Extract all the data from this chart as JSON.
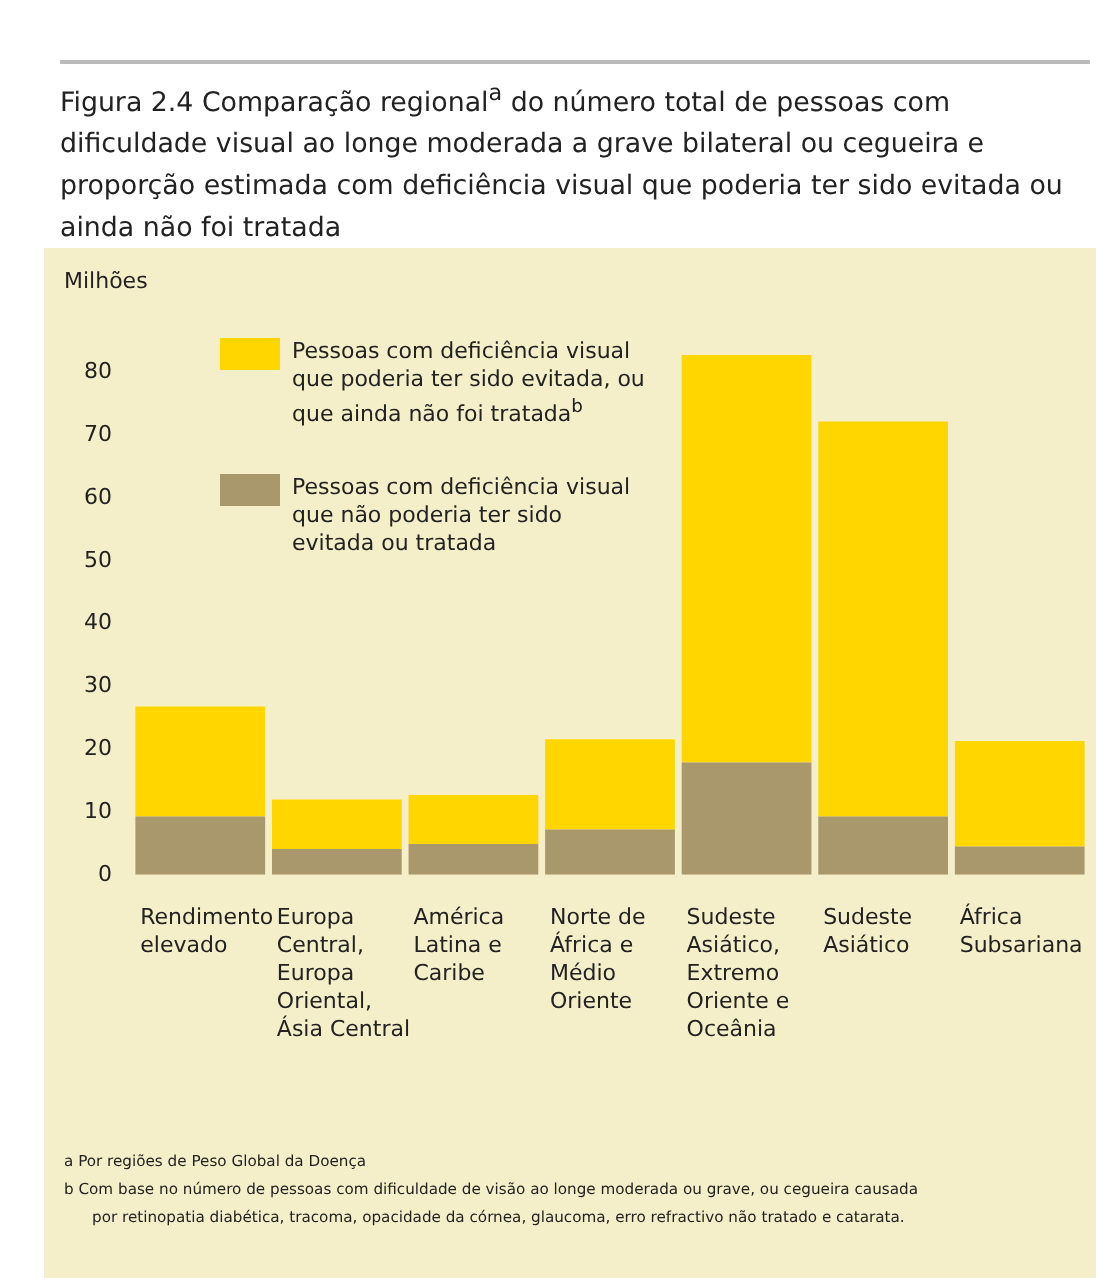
{
  "chart_data": {
    "type": "bar",
    "title": "Figura 2.4 Comparação regional$^{a}$ do número total de pessoas com dificuldade visual ao longe moderada a grave bilateral ou cegueira e proporção estimada com deficiência visual que poderia ter sido evitada ou ainda não foi tratada",
    "ylabel": "Milhões",
    "categories": [
      "Rendimento elevado",
      "Europa Central, Europa Oriental, Ásia Central",
      "América Latina e Caribe",
      "Norte de África e Médio Oriente",
      "Sudeste Asiático, Extremo Oriente e Oceânia",
      "Sudeste Asiático",
      "África Subsariana"
    ],
    "stacked": true,
    "series": [
      {
        "name": "Pessoas com deficiência visual que não poderia ter sido evitada ou tratada",
        "color": "#a8986b",
        "values": [
          9.3,
          4.1,
          4.9,
          7.2,
          17.9,
          9.3,
          4.5
        ]
      },
      {
        "name": "Pessoas com deficiência visual que poderia ter sido evitada, ou que ainda não foi tratada$^{b}$",
        "color": "#ffd600",
        "values": [
          17.5,
          7.9,
          7.8,
          14.4,
          64.9,
          62.9,
          16.8
        ]
      }
    ],
    "ylim": [
      0,
      85
    ],
    "yticks": [
      0,
      10,
      20,
      30,
      40,
      50,
      60,
      70,
      80
    ],
    "grid": false,
    "legend": "top left",
    "annotations": [
      "a   Por regiões de Peso Global da Doença",
      "b   Com base no número de pessoas com dificuldade de visão ao longe moderada ou grave, ou cegueira causada por retinopatia diabética, tracoma, opacidade da córnea, glaucoma, erro refractivo não tratado e catarata."
    ]
  }
}
